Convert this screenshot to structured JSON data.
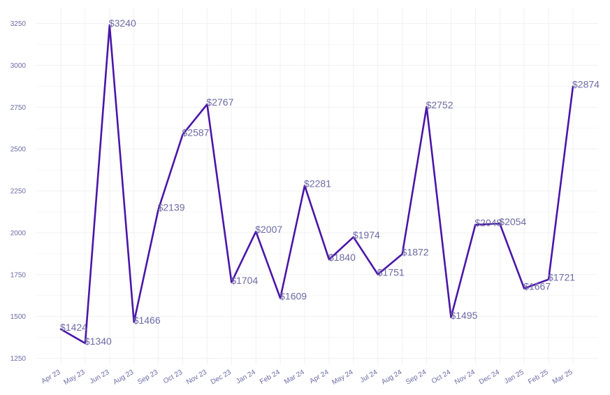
{
  "chart_data": {
    "type": "line",
    "title": "",
    "xlabel": "",
    "ylabel": "",
    "ylim": [
      1250,
      3330
    ],
    "yticks": [
      1250,
      1500,
      1750,
      2000,
      2250,
      2500,
      2750,
      3000,
      3250
    ],
    "grid": true,
    "legend": "none",
    "line_color": "#4a16a8",
    "label_prefix": "$",
    "categories": [
      "Apr 23",
      "May 23",
      "Jun 23",
      "Aug 23",
      "Sep 23",
      "Oct 23",
      "Nov 23",
      "Dec 23",
      "Jan 24",
      "Feb 24",
      "Mar 24",
      "Apr 24",
      "May 24",
      "Jul 24",
      "Aug 24",
      "Sep 24",
      "Oct 24",
      "Nov 24",
      "Dec 24",
      "Jan 25",
      "Feb 25",
      "Mar 25"
    ],
    "series": [
      {
        "values": [
          1424,
          1340,
          3240,
          1466,
          2139,
          2587,
          2767,
          1704,
          2007,
          1609,
          2281,
          1840,
          1974,
          1751,
          1872,
          2752,
          1495,
          2048,
          2054,
          1667,
          1721,
          2874
        ],
        "labels": [
          "$1424",
          "$1340",
          "$3240",
          "$1466",
          "$2139",
          "$2587",
          "$2767",
          "$1704",
          "$2007",
          "$1609",
          "$2281",
          "$1840",
          "$1974",
          "$1751",
          "$1872",
          "$2752",
          "$1495",
          "$2048",
          "$2054",
          "$1667",
          "$1721",
          "$2874"
        ]
      }
    ]
  }
}
